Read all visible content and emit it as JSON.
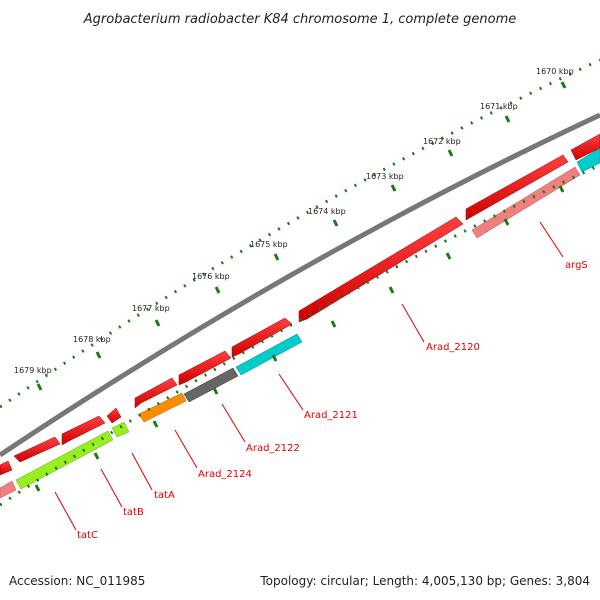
{
  "title": "Agrobacterium radiobacter K84 chromosome 1, complete genome",
  "scale_labels": [
    "1670 kbp",
    "1671 kbp",
    "1672 kbp",
    "1673 kbp",
    "1674 kbp",
    "1675 kbp",
    "1676 kbp",
    "1677 kbp",
    "1678 kbp",
    "1679 kbp"
  ],
  "gene_labels": [
    "argS",
    "Arad_2120",
    "Arad_2121",
    "Arad_2122",
    "Arad_2124",
    "tatA",
    "tatB",
    "tatC"
  ],
  "footer": {
    "accession": "Accession: NC_011985",
    "summary": "Topology: circular; Length: 4,005,130 bp; Genes: 3,804"
  },
  "colors": {
    "backbone": "#808080",
    "forward_gene": "#ff0000",
    "reverse_gene": "#ff0000",
    "rna_pink": "#f08080",
    "cyan": "#00cccc",
    "gray": "#666666",
    "orange": "#ff8c00",
    "lime": "#99ee22",
    "tick": "#1a7a1a",
    "label": "#e00000"
  }
}
